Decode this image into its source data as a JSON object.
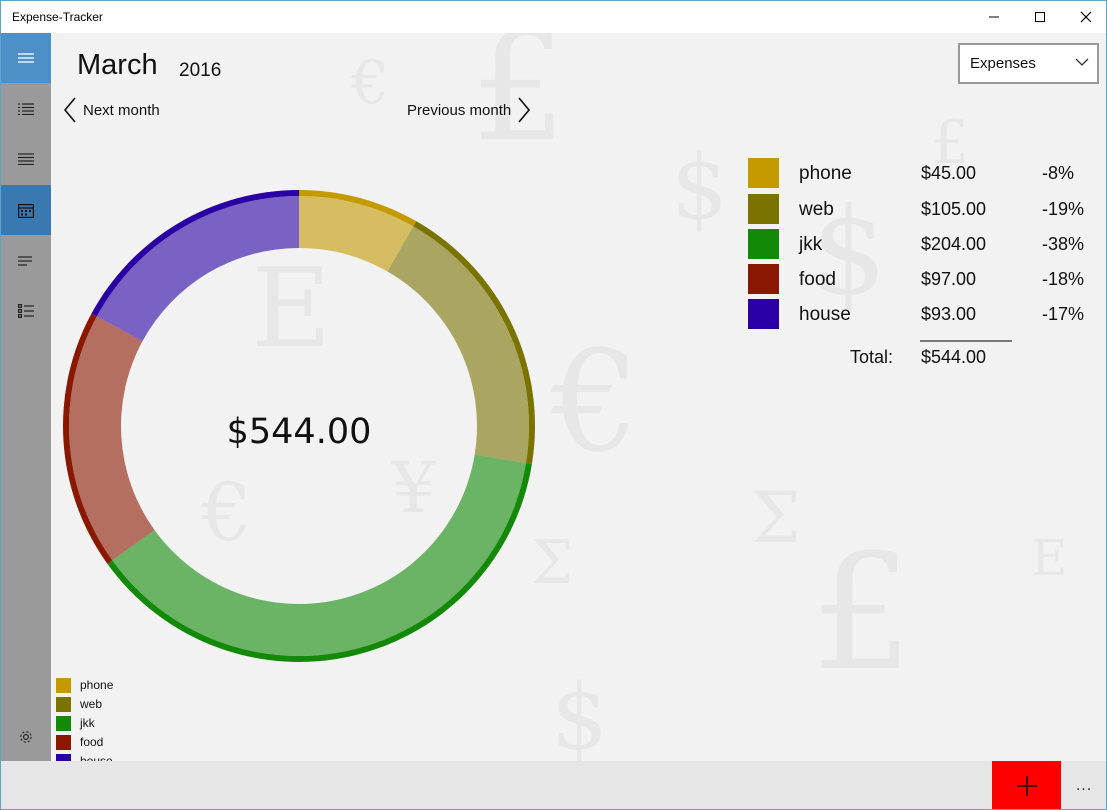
{
  "window": {
    "title": "Expense-Tracker"
  },
  "header": {
    "month": "March",
    "year": "2016"
  },
  "nav": {
    "next": "Next month",
    "previous": "Previous month"
  },
  "filter": {
    "selected": "Expenses"
  },
  "colors": {
    "phone": "#c49a00",
    "web": "#7a7300",
    "jkk": "#138a07",
    "food": "#8a1700",
    "house": "#2a00a5",
    "add_button": "#ff0000",
    "sidebar_accent": "#4d90c8"
  },
  "chart_data": {
    "type": "pie",
    "center_label": "$544.00",
    "categories": [
      "phone",
      "web",
      "jkk",
      "food",
      "house"
    ],
    "values": [
      45,
      105,
      204,
      97,
      93
    ],
    "colors": [
      "#c49a00",
      "#7a7300",
      "#138a07",
      "#8a1700",
      "#2a00a5"
    ]
  },
  "summary": {
    "rows": [
      {
        "name": "phone",
        "amount": "$45.00",
        "percent": "-8%"
      },
      {
        "name": "web",
        "amount": "$105.00",
        "percent": "-19%"
      },
      {
        "name": "jkk",
        "amount": "$204.00",
        "percent": "-38%"
      },
      {
        "name": "food",
        "amount": "$97.00",
        "percent": "-18%"
      },
      {
        "name": "house",
        "amount": "$93.00",
        "percent": "-17%"
      }
    ],
    "total_label": "Total:",
    "total_value": "$544.00"
  },
  "legend": [
    "phone",
    "web",
    "jkk",
    "food",
    "house"
  ],
  "sidebar": {
    "items": [
      {
        "icon": "hamburger-icon"
      },
      {
        "icon": "list-icon"
      },
      {
        "icon": "list-detail-icon"
      },
      {
        "icon": "calendar-icon"
      },
      {
        "icon": "lines-icon"
      },
      {
        "icon": "bullet-list-icon"
      }
    ],
    "settings_icon": "gear-icon"
  },
  "bottombar": {
    "add_icon": "plus-icon",
    "more": "..."
  }
}
